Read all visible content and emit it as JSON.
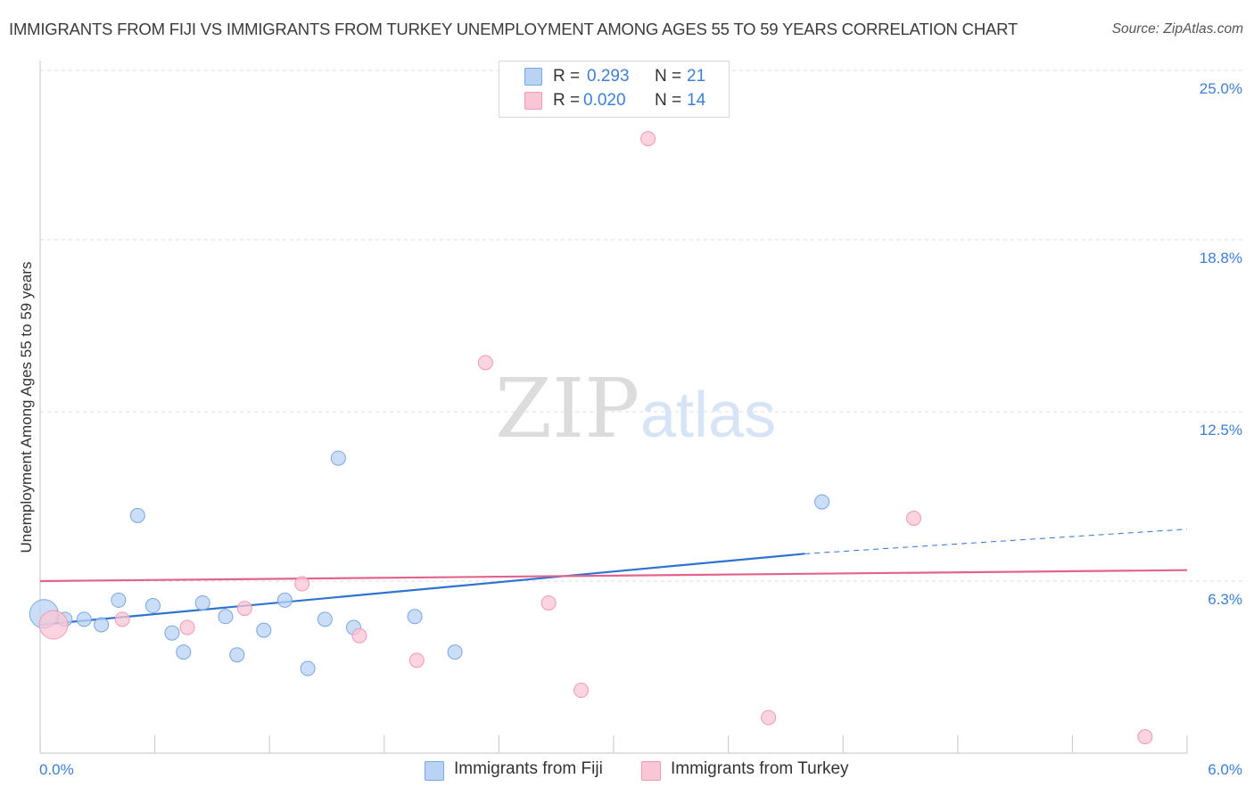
{
  "title": "IMMIGRANTS FROM FIJI VS IMMIGRANTS FROM TURKEY UNEMPLOYMENT AMONG AGES 55 TO 59 YEARS CORRELATION CHART",
  "source": "Source: ZipAtlas.com",
  "watermark": {
    "zip": "ZIP",
    "atlas": "atlas"
  },
  "legend": {
    "r_label": "R =",
    "n_label": "N =",
    "fiji": {
      "r": "0.293",
      "n": "21"
    },
    "turkey": {
      "r": "0.020",
      "n": "14"
    }
  },
  "colors": {
    "fiji_fill": "#b9d3f5",
    "fiji_stroke": "#7aa6e0",
    "fiji_line": "#2f73d1",
    "turkey_fill": "#f9c6d5",
    "turkey_stroke": "#ee9ab4",
    "turkey_line": "#e2648c",
    "tick_label": "#3d7fd6"
  },
  "chart_data": {
    "type": "scatter",
    "title": "IMMIGRANTS FROM FIJI VS IMMIGRANTS FROM TURKEY UNEMPLOYMENT AMONG AGES 55 TO 59 YEARS CORRELATION CHART",
    "xlabel": "",
    "ylabel": "Unemployment Among Ages 55 to 59 years",
    "xlim": [
      0,
      6.0
    ],
    "ylim": [
      0,
      25.0
    ],
    "x_tick_labels": [
      "0.0%",
      "6.0%"
    ],
    "y_ticks": [
      6.3,
      12.5,
      18.8,
      25.0
    ],
    "y_tick_labels": [
      "6.3%",
      "12.5%",
      "18.8%",
      "25.0%"
    ],
    "grid": true,
    "legend_position": "top-center",
    "series": [
      {
        "name": "Immigrants from Fiji",
        "color": "#b9d3f5",
        "points": [
          [
            0.02,
            5.1
          ],
          [
            0.13,
            4.9
          ],
          [
            0.23,
            4.9
          ],
          [
            0.32,
            4.7
          ],
          [
            0.41,
            5.6
          ],
          [
            0.51,
            8.7
          ],
          [
            0.59,
            5.4
          ],
          [
            0.69,
            4.4
          ],
          [
            0.75,
            3.7
          ],
          [
            0.85,
            5.5
          ],
          [
            0.97,
            5.0
          ],
          [
            1.03,
            3.6
          ],
          [
            1.17,
            4.5
          ],
          [
            1.28,
            5.6
          ],
          [
            1.4,
            3.1
          ],
          [
            1.49,
            4.9
          ],
          [
            1.56,
            10.8
          ],
          [
            1.64,
            4.6
          ],
          [
            1.96,
            5.0
          ],
          [
            2.17,
            3.7
          ],
          [
            4.09,
            9.2
          ]
        ],
        "sizes": [
          16,
          8,
          8,
          8,
          8,
          8,
          8,
          8,
          8,
          8,
          8,
          8,
          8,
          8,
          8,
          8,
          8,
          8,
          8,
          8,
          8
        ],
        "trend": {
          "x": [
            0,
            4.0
          ],
          "y": [
            4.7,
            7.3
          ],
          "dashed_to": [
            6.0,
            8.2
          ]
        }
      },
      {
        "name": "Immigrants from Turkey",
        "color": "#f9c6d5",
        "points": [
          [
            0.07,
            4.7
          ],
          [
            0.43,
            4.9
          ],
          [
            0.77,
            4.6
          ],
          [
            1.07,
            5.3
          ],
          [
            1.37,
            6.2
          ],
          [
            1.67,
            4.3
          ],
          [
            1.97,
            3.4
          ],
          [
            2.33,
            14.3
          ],
          [
            2.66,
            5.5
          ],
          [
            2.83,
            2.3
          ],
          [
            3.18,
            22.5
          ],
          [
            3.81,
            1.3
          ],
          [
            4.57,
            8.6
          ],
          [
            5.78,
            0.6
          ]
        ],
        "sizes": [
          16,
          8,
          8,
          8,
          8,
          8,
          8,
          8,
          8,
          8,
          8,
          8,
          8,
          8
        ],
        "trend": {
          "x": [
            0,
            6.0
          ],
          "y": [
            6.3,
            6.7
          ]
        }
      }
    ]
  }
}
